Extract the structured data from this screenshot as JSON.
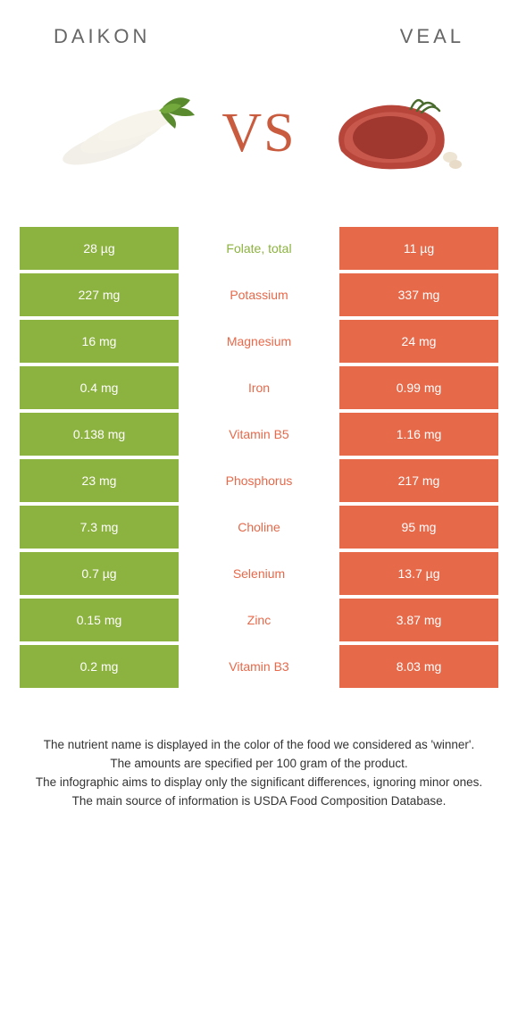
{
  "colors": {
    "left": "#8cb23f",
    "right": "#e6694a",
    "mid_bg": "#ffffff",
    "vs": "#c95c3f",
    "header_text": "#666666"
  },
  "header": {
    "left_label": "DAIKON",
    "right_label": "VEAL"
  },
  "vs": "VS",
  "rows": [
    {
      "left": "28 µg",
      "label": "Folate, total",
      "right": "11 µg",
      "winner": "left"
    },
    {
      "left": "227 mg",
      "label": "Potassium",
      "right": "337 mg",
      "winner": "right"
    },
    {
      "left": "16 mg",
      "label": "Magnesium",
      "right": "24 mg",
      "winner": "right"
    },
    {
      "left": "0.4 mg",
      "label": "Iron",
      "right": "0.99 mg",
      "winner": "right"
    },
    {
      "left": "0.138 mg",
      "label": "Vitamin B5",
      "right": "1.16 mg",
      "winner": "right"
    },
    {
      "left": "23 mg",
      "label": "Phosphorus",
      "right": "217 mg",
      "winner": "right"
    },
    {
      "left": "7.3 mg",
      "label": "Choline",
      "right": "95 mg",
      "winner": "right"
    },
    {
      "left": "0.7 µg",
      "label": "Selenium",
      "right": "13.7 µg",
      "winner": "right"
    },
    {
      "left": "0.15 mg",
      "label": "Zinc",
      "right": "3.87 mg",
      "winner": "right"
    },
    {
      "left": "0.2 mg",
      "label": "Vitamin B3",
      "right": "8.03 mg",
      "winner": "right"
    }
  ],
  "footnotes": [
    "The nutrient name is displayed in the color of the food we considered as 'winner'.",
    "The amounts are specified per 100 gram of the product.",
    "The infographic aims to display only the significant differences, ignoring minor ones.",
    "The main source of information is USDA Food Composition Database."
  ]
}
